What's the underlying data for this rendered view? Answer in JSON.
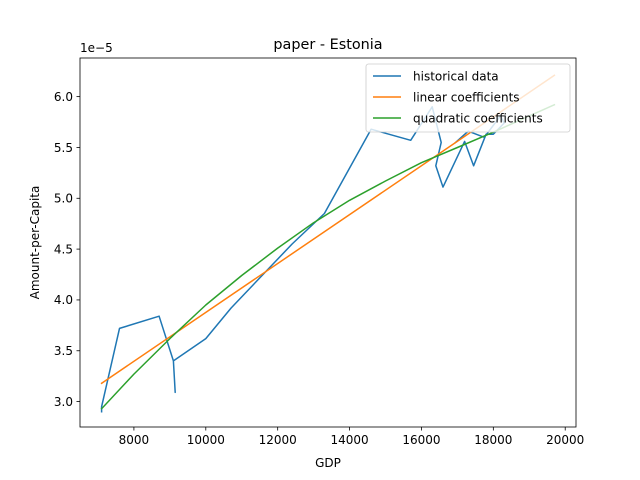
{
  "chart_data": {
    "type": "line",
    "title": "paper - Estonia",
    "xlabel": "GDP",
    "ylabel": "Amount-per-Capita",
    "y_scale_label": "1e−5",
    "xlim": [
      6500,
      20300
    ],
    "ylim": [
      2.75,
      6.38
    ],
    "y_multiplier": 1e-05,
    "xticks": [
      8000,
      10000,
      12000,
      14000,
      16000,
      18000,
      20000
    ],
    "xtick_labels": [
      "8000",
      "10000",
      "12000",
      "14000",
      "16000",
      "18000",
      "20000"
    ],
    "yticks": [
      3.0,
      3.5,
      4.0,
      4.5,
      5.0,
      5.5,
      6.0
    ],
    "ytick_labels": [
      "3.0",
      "3.5",
      "4.0",
      "4.5",
      "5.0",
      "5.5",
      "6.0"
    ],
    "grid": false,
    "legend_position": "top-right",
    "series": [
      {
        "name": "historical data",
        "color": "#1f77b4",
        "x": [
          7100,
          7100,
          7600,
          8700,
          9100,
          9150,
          9100,
          10000,
          10700,
          12400,
          13300,
          14600,
          15700,
          16300,
          16550,
          16400,
          16600,
          17200,
          17450,
          17800,
          18000,
          18300,
          18200,
          17750,
          17300,
          16950
        ],
        "y": [
          2.9,
          2.95,
          3.72,
          3.84,
          3.4,
          3.09,
          3.4,
          3.62,
          3.92,
          4.55,
          4.85,
          5.68,
          5.57,
          5.9,
          5.55,
          5.32,
          5.11,
          5.56,
          5.32,
          5.63,
          5.63,
          5.74,
          5.81,
          5.6,
          5.66,
          5.55
        ]
      },
      {
        "name": "linear coefficients",
        "color": "#ff7f0e",
        "x": [
          7100,
          19700
        ],
        "y": [
          3.18,
          6.21
        ]
      },
      {
        "name": "quadratic coefficients",
        "color": "#2ca02c",
        "x": [
          7100,
          8000,
          9000,
          10000,
          11000,
          12000,
          13000,
          14000,
          15000,
          16000,
          17000,
          18000,
          19000,
          19700
        ],
        "y": [
          2.93,
          3.27,
          3.62,
          3.95,
          4.24,
          4.51,
          4.76,
          4.98,
          5.17,
          5.35,
          5.5,
          5.65,
          5.81,
          5.92
        ]
      }
    ]
  }
}
